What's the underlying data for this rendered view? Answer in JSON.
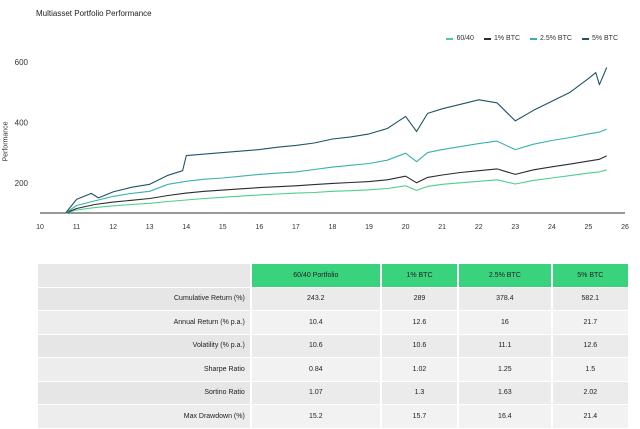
{
  "chart_data": {
    "type": "line",
    "title": "Multiasset Portfolio Performance",
    "ylabel": "Performance",
    "xlabel": "",
    "xlim": [
      10,
      26
    ],
    "ylim": [
      100,
      620
    ],
    "x_ticks": [
      "10",
      "11",
      "12",
      "13",
      "14",
      "15",
      "16",
      "17",
      "18",
      "19",
      "20",
      "21",
      "22",
      "23",
      "24",
      "25",
      "26"
    ],
    "y_ticks": [
      200,
      400,
      600
    ],
    "legend_position": "top-right",
    "grid": false,
    "series": [
      {
        "name": "60/40",
        "color": "#4ccf8d",
        "x": [
          10.7,
          11.0,
          11.5,
          12.0,
          12.5,
          13.0,
          13.5,
          14.0,
          14.5,
          15.0,
          15.5,
          16.0,
          16.5,
          17.0,
          17.5,
          18.0,
          18.5,
          19.0,
          19.5,
          20.0,
          20.3,
          20.6,
          21.0,
          21.5,
          22.0,
          22.5,
          23.0,
          23.5,
          24.0,
          24.5,
          25.0,
          25.3,
          25.5
        ],
        "y": [
          100,
          110,
          118,
          124,
          128,
          132,
          138,
          143,
          148,
          152,
          156,
          160,
          163,
          166,
          168,
          172,
          174,
          177,
          181,
          190,
          175,
          188,
          195,
          200,
          205,
          210,
          196,
          208,
          216,
          224,
          232,
          236,
          243
        ]
      },
      {
        "name": "1% BTC",
        "color": "#2c2c2c",
        "x": [
          10.7,
          11.0,
          11.5,
          12.0,
          12.5,
          13.0,
          13.5,
          14.0,
          14.5,
          15.0,
          15.5,
          16.0,
          16.5,
          17.0,
          17.5,
          18.0,
          18.5,
          19.0,
          19.5,
          20.0,
          20.3,
          20.6,
          21.0,
          21.5,
          22.0,
          22.5,
          23.0,
          23.5,
          24.0,
          24.5,
          25.0,
          25.3,
          25.5
        ],
        "y": [
          100,
          115,
          128,
          136,
          142,
          148,
          158,
          166,
          172,
          176,
          180,
          184,
          187,
          190,
          194,
          198,
          201,
          204,
          210,
          222,
          200,
          218,
          226,
          234,
          240,
          246,
          228,
          243,
          253,
          262,
          272,
          278,
          289
        ]
      },
      {
        "name": "2.5% BTC",
        "color": "#38b2ad",
        "x": [
          10.7,
          11.0,
          11.5,
          12.0,
          12.5,
          13.0,
          13.5,
          14.0,
          14.5,
          15.0,
          15.5,
          16.0,
          16.5,
          17.0,
          17.5,
          18.0,
          18.5,
          19.0,
          19.5,
          20.0,
          20.3,
          20.6,
          21.0,
          21.5,
          22.0,
          22.5,
          23.0,
          23.5,
          24.0,
          24.5,
          25.0,
          25.3,
          25.5
        ],
        "y": [
          100,
          125,
          140,
          155,
          165,
          172,
          195,
          205,
          212,
          216,
          222,
          228,
          232,
          236,
          244,
          252,
          258,
          264,
          275,
          298,
          270,
          300,
          310,
          320,
          330,
          338,
          310,
          328,
          340,
          350,
          362,
          368,
          378
        ]
      },
      {
        "name": "5% BTC",
        "color": "#1f5564",
        "x": [
          10.7,
          11.0,
          11.4,
          11.6,
          12.0,
          12.5,
          13.0,
          13.5,
          13.9,
          14.0,
          14.5,
          15.0,
          15.5,
          16.0,
          16.5,
          17.0,
          17.5,
          18.0,
          18.5,
          19.0,
          19.5,
          20.0,
          20.3,
          20.6,
          21.0,
          21.5,
          22.0,
          22.5,
          23.0,
          23.5,
          24.0,
          24.5,
          25.0,
          25.2,
          25.3,
          25.5
        ],
        "y": [
          100,
          145,
          165,
          150,
          170,
          185,
          195,
          225,
          240,
          290,
          295,
          300,
          305,
          310,
          318,
          324,
          332,
          345,
          352,
          362,
          380,
          420,
          370,
          430,
          445,
          460,
          475,
          465,
          405,
          440,
          470,
          500,
          545,
          565,
          525,
          582
        ]
      }
    ]
  },
  "table": {
    "headers": [
      "",
      "60/40 Portfolio",
      "1% BTC",
      "2.5% BTC",
      "5% BTC"
    ],
    "rows": [
      {
        "label": "Cumulative Return (%)",
        "values": [
          "243.2",
          "289",
          "378.4",
          "582.1"
        ]
      },
      {
        "label": "Annual Return (% p.a.)",
        "values": [
          "10.4",
          "12.6",
          "16",
          "21.7"
        ]
      },
      {
        "label": "Volatility (% p.a.)",
        "values": [
          "10.6",
          "10.6",
          "11.1",
          "12.6"
        ]
      },
      {
        "label": "Sharpe Ratio",
        "values": [
          "0.84",
          "1.02",
          "1.25",
          "1.5"
        ]
      },
      {
        "label": "Sortino Ratio",
        "values": [
          "1.07",
          "1.3",
          "1.63",
          "2.02"
        ]
      },
      {
        "label": "Max Drawdown (%)",
        "values": [
          "15.2",
          "15.7",
          "16.4",
          "21.4"
        ]
      }
    ]
  }
}
